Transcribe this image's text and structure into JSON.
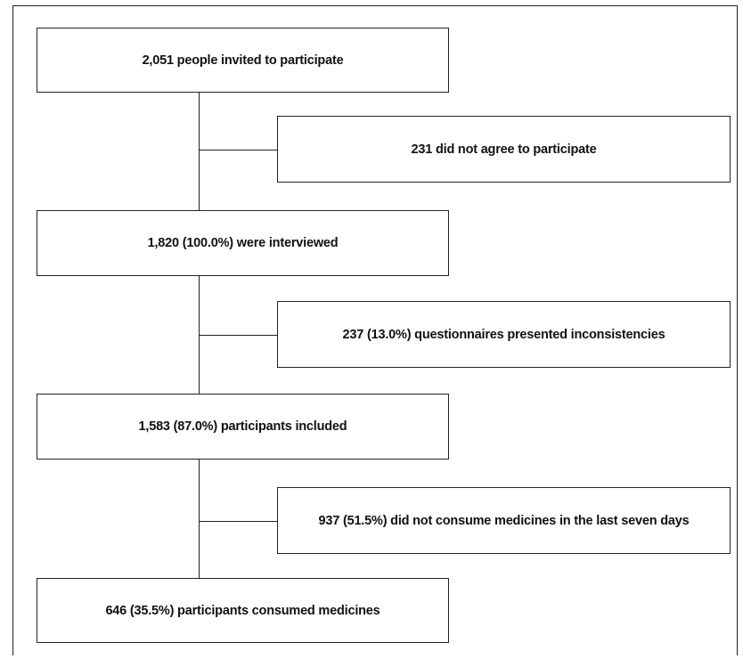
{
  "flowchart": {
    "main_steps": [
      {
        "label": "2,051 people invited to participate"
      },
      {
        "label": "1,820 (100.0%) were interviewed"
      },
      {
        "label": "1,583 (87.0%) participants included"
      },
      {
        "label": "646 (35.5%) participants consumed medicines"
      }
    ],
    "exclusions": [
      {
        "label": "231 did not agree to participate"
      },
      {
        "label": "237 (13.0%) questionnaires presented inconsistencies"
      },
      {
        "label": "937 (51.5%) did not consume medicines in the last seven days"
      }
    ]
  }
}
